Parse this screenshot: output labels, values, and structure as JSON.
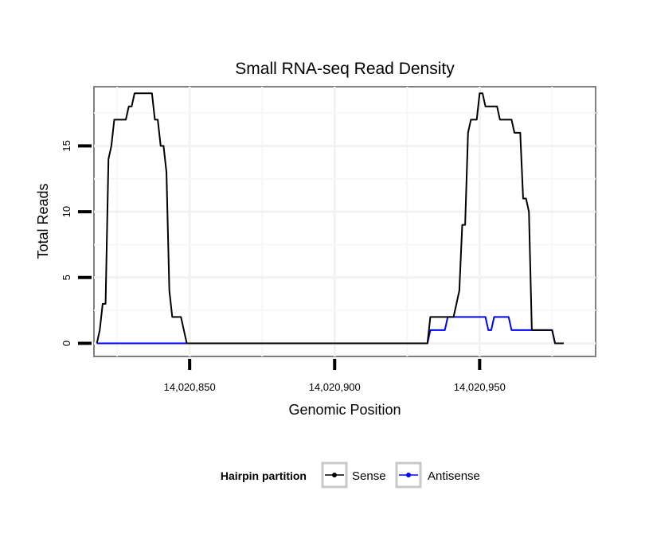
{
  "chart_data": {
    "type": "line",
    "title": "Small RNA-seq Read Density",
    "xlabel": "Genomic Position",
    "ylabel": "Total Reads",
    "xlim": [
      14020817,
      14020990
    ],
    "ylim": [
      -1,
      19.5
    ],
    "x_ticks": [
      14020850,
      14020900,
      14020950
    ],
    "x_tick_labels": [
      "14,020,850",
      "14,020,900",
      "14,020,950"
    ],
    "y_ticks": [
      0,
      5,
      10,
      15
    ],
    "y_tick_labels": [
      "0",
      "5",
      "10",
      "15"
    ],
    "legend": {
      "title": "Hairpin partition",
      "position": "bottom"
    },
    "series": [
      {
        "name": "Sense",
        "color": "#000000",
        "points": [
          [
            14020818,
            0
          ],
          [
            14020819,
            1
          ],
          [
            14020820,
            3
          ],
          [
            14020821,
            3
          ],
          [
            14020822,
            14
          ],
          [
            14020823,
            15
          ],
          [
            14020824,
            17
          ],
          [
            14020825,
            17
          ],
          [
            14020826,
            17
          ],
          [
            14020827,
            17
          ],
          [
            14020828,
            17
          ],
          [
            14020829,
            18
          ],
          [
            14020830,
            18
          ],
          [
            14020831,
            19
          ],
          [
            14020832,
            19
          ],
          [
            14020833,
            19
          ],
          [
            14020834,
            19
          ],
          [
            14020835,
            19
          ],
          [
            14020836,
            19
          ],
          [
            14020837,
            19
          ],
          [
            14020838,
            17
          ],
          [
            14020839,
            17
          ],
          [
            14020840,
            15
          ],
          [
            14020841,
            15
          ],
          [
            14020842,
            13
          ],
          [
            14020843,
            4
          ],
          [
            14020844,
            2
          ],
          [
            14020845,
            2
          ],
          [
            14020846,
            2
          ],
          [
            14020847,
            2
          ],
          [
            14020848,
            1
          ],
          [
            14020849,
            0
          ],
          [
            14020850,
            0
          ],
          [
            14020900,
            0
          ],
          [
            14020930,
            0
          ],
          [
            14020931,
            0
          ],
          [
            14020932,
            0
          ],
          [
            14020933,
            2
          ],
          [
            14020934,
            2
          ],
          [
            14020935,
            2
          ],
          [
            14020936,
            2
          ],
          [
            14020937,
            2
          ],
          [
            14020938,
            2
          ],
          [
            14020939,
            2
          ],
          [
            14020940,
            2
          ],
          [
            14020941,
            2
          ],
          [
            14020942,
            3
          ],
          [
            14020943,
            4
          ],
          [
            14020944,
            9
          ],
          [
            14020945,
            9
          ],
          [
            14020946,
            16
          ],
          [
            14020947,
            17
          ],
          [
            14020948,
            17
          ],
          [
            14020949,
            17
          ],
          [
            14020950,
            19
          ],
          [
            14020951,
            19
          ],
          [
            14020952,
            18
          ],
          [
            14020953,
            18
          ],
          [
            14020954,
            18
          ],
          [
            14020955,
            18
          ],
          [
            14020956,
            18
          ],
          [
            14020957,
            17
          ],
          [
            14020958,
            17
          ],
          [
            14020959,
            17
          ],
          [
            14020960,
            17
          ],
          [
            14020961,
            17
          ],
          [
            14020962,
            16
          ],
          [
            14020963,
            16
          ],
          [
            14020964,
            16
          ],
          [
            14020965,
            11
          ],
          [
            14020966,
            11
          ],
          [
            14020967,
            10
          ],
          [
            14020968,
            1
          ],
          [
            14020969,
            1
          ],
          [
            14020970,
            1
          ],
          [
            14020971,
            1
          ],
          [
            14020972,
            1
          ],
          [
            14020973,
            1
          ],
          [
            14020974,
            1
          ],
          [
            14020975,
            1
          ],
          [
            14020976,
            0
          ],
          [
            14020977,
            0
          ],
          [
            14020978,
            0
          ],
          [
            14020979,
            0
          ]
        ]
      },
      {
        "name": "Antisense",
        "color": "#0000ff",
        "points": [
          [
            14020818,
            0
          ],
          [
            14020850,
            0
          ],
          [
            14020900,
            0
          ],
          [
            14020932,
            0
          ],
          [
            14020933,
            1
          ],
          [
            14020934,
            1
          ],
          [
            14020935,
            1
          ],
          [
            14020936,
            1
          ],
          [
            14020937,
            1
          ],
          [
            14020938,
            1
          ],
          [
            14020939,
            2
          ],
          [
            14020940,
            2
          ],
          [
            14020941,
            2
          ],
          [
            14020942,
            2
          ],
          [
            14020943,
            2
          ],
          [
            14020944,
            2
          ],
          [
            14020945,
            2
          ],
          [
            14020946,
            2
          ],
          [
            14020947,
            2
          ],
          [
            14020948,
            2
          ],
          [
            14020949,
            2
          ],
          [
            14020950,
            2
          ],
          [
            14020951,
            2
          ],
          [
            14020952,
            2
          ],
          [
            14020953,
            1
          ],
          [
            14020954,
            1
          ],
          [
            14020955,
            2
          ],
          [
            14020956,
            2
          ],
          [
            14020957,
            2
          ],
          [
            14020958,
            2
          ],
          [
            14020959,
            2
          ],
          [
            14020960,
            2
          ],
          [
            14020961,
            1
          ],
          [
            14020962,
            1
          ],
          [
            14020963,
            1
          ],
          [
            14020964,
            1
          ],
          [
            14020965,
            1
          ],
          [
            14020966,
            1
          ],
          [
            14020967,
            1
          ],
          [
            14020968,
            1
          ],
          [
            14020969,
            1
          ],
          [
            14020970,
            1
          ],
          [
            14020971,
            1
          ],
          [
            14020972,
            1
          ],
          [
            14020973,
            1
          ],
          [
            14020974,
            1
          ],
          [
            14020975,
            1
          ],
          [
            14020976,
            0
          ],
          [
            14020977,
            0
          ]
        ]
      }
    ]
  }
}
